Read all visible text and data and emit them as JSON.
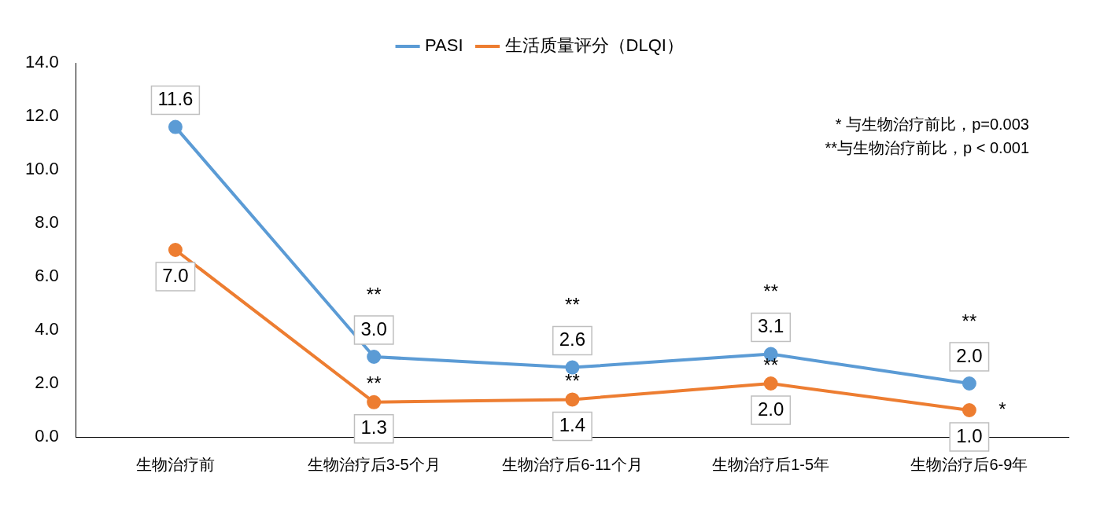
{
  "chart_data": {
    "type": "line",
    "categories": [
      "生物治疗前",
      "生物治疗后3-5个月",
      "生物治疗后6-11个月",
      "生物治疗后1-5年",
      "生物治疗后6-9年"
    ],
    "series": [
      {
        "name": "PASI",
        "color": "#5b9bd5",
        "values": [
          11.6,
          3.0,
          2.6,
          3.1,
          2.0
        ],
        "value_labels": [
          "11.6",
          "3.0",
          "2.6",
          "3.1",
          "2.0"
        ]
      },
      {
        "name": "生活质量评分（DLQI）",
        "color": "#ed7d31",
        "values": [
          7.0,
          1.3,
          1.4,
          2.0,
          1.0
        ],
        "value_labels": [
          "7.0",
          "1.3",
          "1.4",
          "2.0",
          "1.0"
        ]
      }
    ],
    "ylim": [
      0,
      14
    ],
    "yticks": [
      {
        "value": 0,
        "label": "0.0"
      },
      {
        "value": 2,
        "label": "2.0"
      },
      {
        "value": 4,
        "label": "4.0"
      },
      {
        "value": 6,
        "label": "6.0"
      },
      {
        "value": 8,
        "label": "8.0"
      },
      {
        "value": 10,
        "label": "10.0"
      },
      {
        "value": 12,
        "label": "12.0"
      },
      {
        "value": 14,
        "label": "14.0"
      }
    ],
    "grid": false,
    "legend": "top",
    "marker": "circle",
    "line_style": "solid",
    "annotations": [
      "* 与生物治疗前比，p=0.003",
      "**与生物治疗前比，p < 0.001",
      {
        "text": "**",
        "x": "生物治疗后3-5个月",
        "y": 1.3
      },
      {
        "text": "**",
        "x": "生物治疗后6-11个月",
        "y": 1.4
      },
      {
        "text": "**",
        "x": "生物治疗后1-5年",
        "y": 2.0
      },
      {
        "text": "*",
        "x": "生物治疗后6-9年",
        "y": 1.0
      },
      {
        "text": "**",
        "x": "生物治疗后3-5个月",
        "y": 3.0
      },
      {
        "text": "**",
        "x": "生物治疗后6-11个月",
        "y": 2.6
      },
      {
        "text": "**",
        "x": "生物治疗后1-5年",
        "y": 3.1
      },
      {
        "text": "**",
        "x": "生物治疗后6-9年",
        "y": 2.0
      }
    ]
  }
}
